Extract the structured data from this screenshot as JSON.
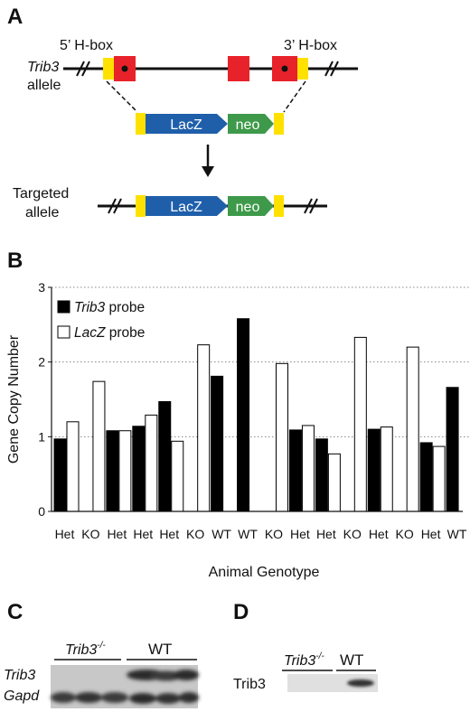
{
  "panels": {
    "a": "A",
    "b": "B",
    "c": "C",
    "d": "D"
  },
  "panel_a": {
    "gene": "Trib3",
    "allele_word": "allele",
    "h5": "5’ H-box",
    "h3": "3’ H-box",
    "lacz": "LacZ",
    "neo": "neo",
    "targeted_line1": "Targeted",
    "targeted_line2": "allele"
  },
  "chart_data": {
    "type": "bar",
    "xlabel": "Animal Genotype",
    "ylabel": "Gene Copy Number",
    "ylim": [
      0,
      3
    ],
    "yticks": [
      "0",
      "1",
      "2",
      "3"
    ],
    "grid": "horizontal dotted",
    "legend_position": "top-left",
    "categories": [
      "Het",
      "KO",
      "Het",
      "Het",
      "Het",
      "KO",
      "WT",
      "WT",
      "KO",
      "Het",
      "Het",
      "KO",
      "Het",
      "KO",
      "Het",
      "WT"
    ],
    "series": [
      {
        "name": "Trib3 probe",
        "legend_italic": "Trib3",
        "legend_plain": " probe",
        "color": "#000000",
        "values": [
          0.97,
          0,
          1.08,
          1.14,
          1.47,
          0,
          1.81,
          2.58,
          0,
          1.09,
          0.97,
          0,
          1.1,
          0,
          0.92,
          1.66
        ]
      },
      {
        "name": "LacZ probe",
        "legend_italic": "LacZ",
        "legend_plain": " probe",
        "color": "#ffffff",
        "values": [
          1.2,
          1.74,
          1.08,
          1.29,
          0.94,
          2.23,
          0,
          0,
          1.98,
          1.15,
          0.77,
          2.33,
          1.13,
          2.2,
          0.87,
          0
        ]
      }
    ]
  },
  "panel_c": {
    "ko_label": "Trib3",
    "ko_sup": "-/-",
    "wt_label": "WT",
    "row1": "Trib3",
    "row2": "Gapd"
  },
  "panel_d": {
    "ko_label": "Trib3",
    "ko_sup": "-/-",
    "wt_label": "WT",
    "row": "Trib3"
  },
  "colors": {
    "hbox": "#e8222a",
    "flank": "#ffe100",
    "lacz": "#1f5faa",
    "neo": "#3e9a4a"
  }
}
